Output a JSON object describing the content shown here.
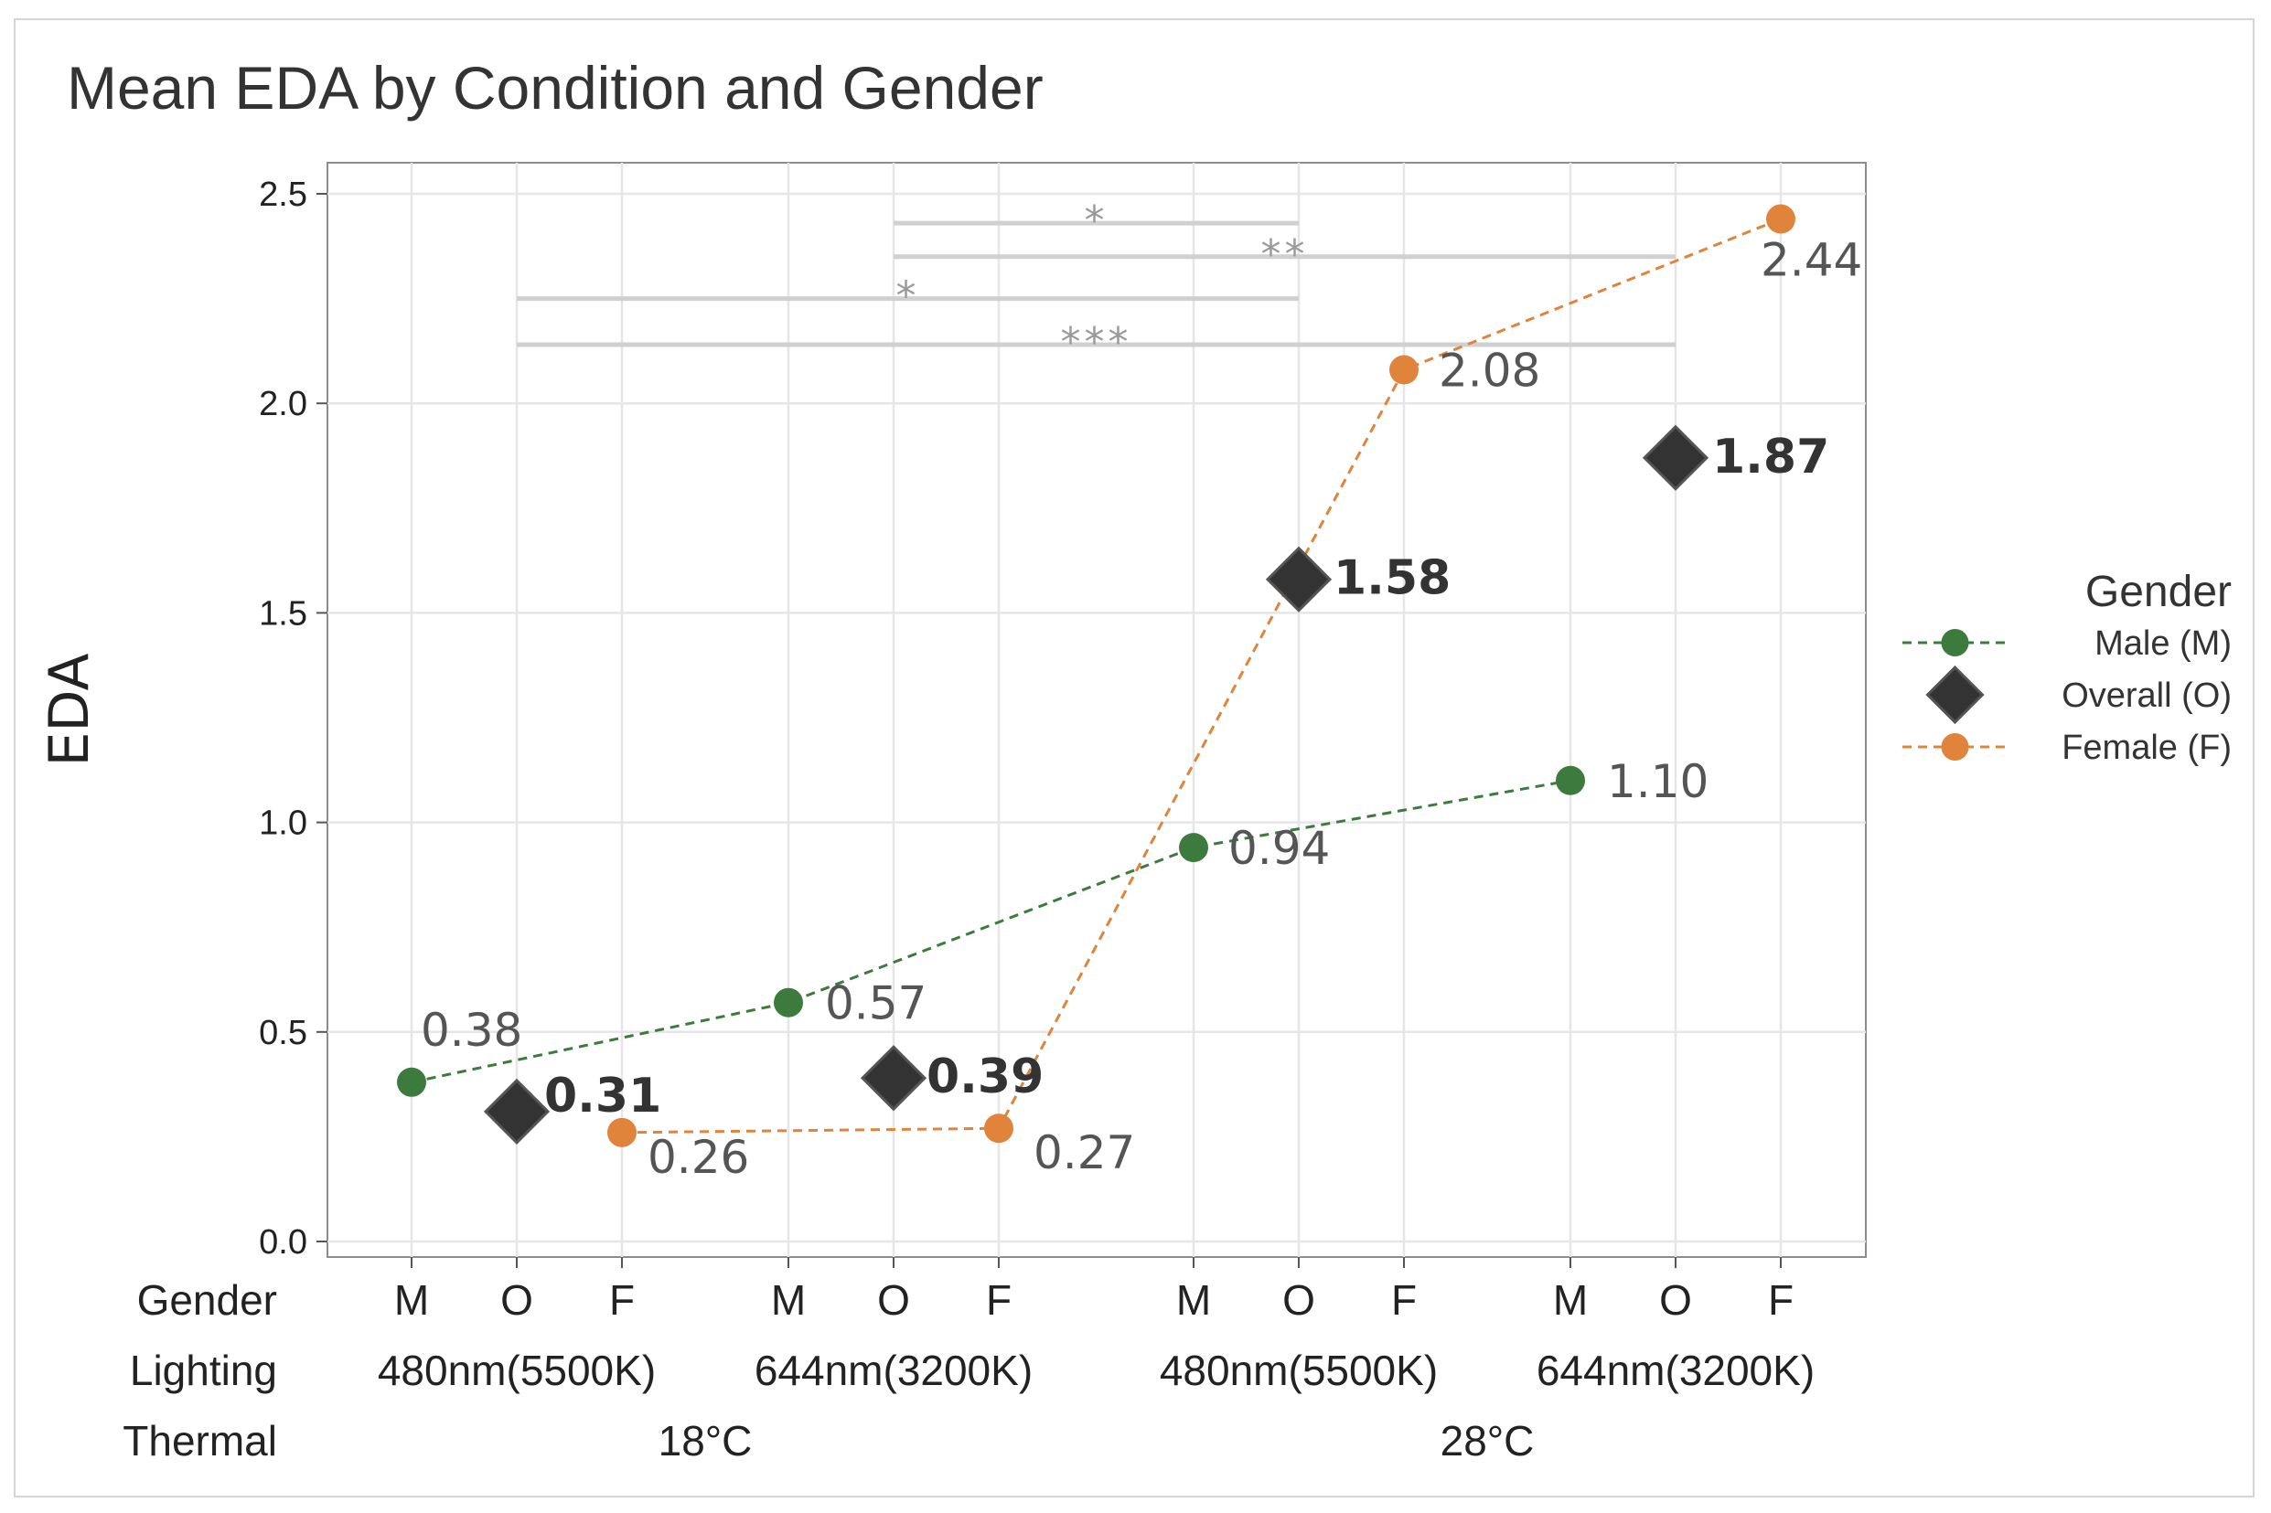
{
  "chart_data": {
    "type": "line",
    "title": "Mean EDA by Condition and Gender",
    "ylabel": "EDA",
    "ylim": [
      0,
      2.5
    ],
    "yticks": [
      "0.0",
      "0.5",
      "1.0",
      "1.5",
      "2.0",
      "2.5"
    ],
    "grid": true,
    "row_labels": {
      "gender": "Gender",
      "lighting": "Lighting",
      "thermal": "Thermal"
    },
    "conditions": [
      {
        "lighting": "480nm(5500K)",
        "thermal": "18°C"
      },
      {
        "lighting": "644nm(3200K)",
        "thermal": "18°C"
      },
      {
        "lighting": "480nm(5500K)",
        "thermal": "28°C"
      },
      {
        "lighting": "644nm(3200K)",
        "thermal": "28°C"
      }
    ],
    "thermal_groups": [
      "18°C",
      "28°C"
    ],
    "gender_codes": [
      "M",
      "O",
      "F"
    ],
    "legend": {
      "title": "Gender",
      "position": "right"
    },
    "series": [
      {
        "name": "Male (M)",
        "code": "M",
        "marker": "circle",
        "line": "dashed",
        "color": "#3d7a3d",
        "values": [
          0.38,
          0.57,
          0.94,
          1.1
        ],
        "labels": [
          "0.38",
          "0.57",
          "0.94",
          "1.10"
        ]
      },
      {
        "name": "Overall (O)",
        "code": "O",
        "marker": "diamond",
        "line": "none",
        "color": "#333333",
        "values": [
          0.31,
          0.39,
          1.58,
          1.87
        ],
        "labels": [
          "0.31",
          "0.39",
          "1.58",
          "1.87"
        ]
      },
      {
        "name": "Female (F)",
        "code": "F",
        "marker": "circle",
        "line": "dashed",
        "color": "#e0843c",
        "values": [
          0.26,
          0.27,
          2.08,
          2.44
        ],
        "labels": [
          "0.26",
          "0.27",
          "2.08",
          "2.44"
        ]
      }
    ],
    "significance": [
      {
        "from": {
          "condition": 1,
          "code": "O"
        },
        "to": {
          "condition": 2,
          "code": "O"
        },
        "level": 2.43,
        "mark": "*"
      },
      {
        "from": {
          "condition": 1,
          "code": "O"
        },
        "to": {
          "condition": 3,
          "code": "O"
        },
        "level": 2.35,
        "mark": "**"
      },
      {
        "from": {
          "condition": 0,
          "code": "O"
        },
        "to": {
          "condition": 2,
          "code": "O"
        },
        "level": 2.25,
        "mark": "*"
      },
      {
        "from": {
          "condition": 0,
          "code": "O"
        },
        "to": {
          "condition": 3,
          "code": "O"
        },
        "level": 2.14,
        "mark": "***"
      }
    ]
  }
}
